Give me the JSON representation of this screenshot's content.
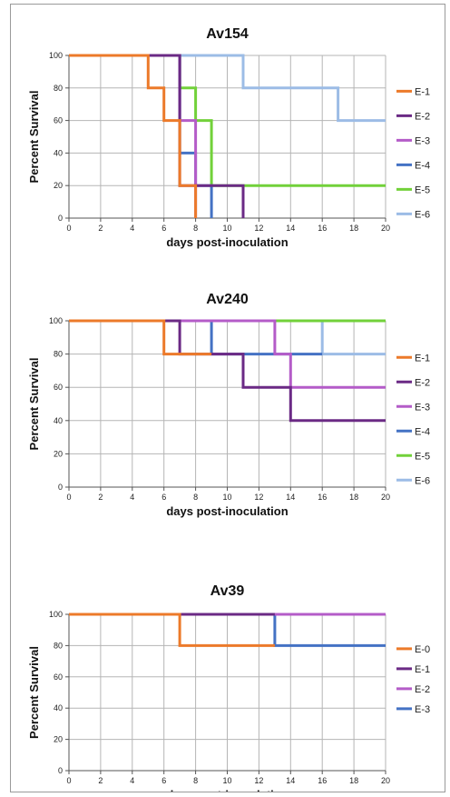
{
  "chart_data": [
    {
      "type": "line",
      "step": true,
      "title": "Av154",
      "xlabel": "days post-inoculation",
      "ylabel": "Percent Survival",
      "xlim": [
        0,
        20
      ],
      "ylim": [
        0,
        100
      ],
      "xticks": [
        0,
        2,
        4,
        6,
        8,
        10,
        12,
        14,
        16,
        18,
        20
      ],
      "yticks": [
        0,
        20,
        40,
        60,
        80,
        100
      ],
      "grid": true,
      "legend_position": "right",
      "series": [
        {
          "name": "E-1",
          "color": "#ec7a2a",
          "points": [
            [
              0,
              100
            ],
            [
              5,
              100
            ],
            [
              5,
              80
            ],
            [
              6,
              80
            ],
            [
              6,
              60
            ],
            [
              7,
              60
            ],
            [
              7,
              20
            ],
            [
              8,
              20
            ],
            [
              8,
              0
            ]
          ]
        },
        {
          "name": "E-2",
          "color": "#6b2a85",
          "points": [
            [
              0,
              100
            ],
            [
              5,
              100
            ],
            [
              5,
              100
            ],
            [
              7,
              100
            ],
            [
              7,
              20
            ],
            [
              11,
              20
            ],
            [
              11,
              0
            ]
          ]
        },
        {
          "name": "E-3",
          "color": "#b45cc8",
          "points": [
            [
              0,
              100
            ],
            [
              7,
              100
            ],
            [
              7,
              60
            ],
            [
              8,
              60
            ],
            [
              8,
              0
            ]
          ]
        },
        {
          "name": "E-4",
          "color": "#4472c4",
          "points": [
            [
              0,
              100
            ],
            [
              7,
              100
            ],
            [
              7,
              40
            ],
            [
              8,
              40
            ],
            [
              8,
              20
            ],
            [
              9,
              20
            ],
            [
              9,
              0
            ]
          ]
        },
        {
          "name": "E-5",
          "color": "#72d13a",
          "points": [
            [
              0,
              100
            ],
            [
              7,
              100
            ],
            [
              7,
              80
            ],
            [
              8,
              80
            ],
            [
              8,
              60
            ],
            [
              9,
              60
            ],
            [
              9,
              20
            ],
            [
              20,
              20
            ]
          ]
        },
        {
          "name": "E-6",
          "color": "#9cbce6",
          "points": [
            [
              0,
              100
            ],
            [
              11,
              100
            ],
            [
              11,
              80
            ],
            [
              17,
              80
            ],
            [
              17,
              60
            ],
            [
              20,
              60
            ]
          ]
        }
      ]
    },
    {
      "type": "line",
      "step": true,
      "title": "Av240",
      "xlabel": "days post-inoculation",
      "ylabel": "Percent Survival",
      "xlim": [
        0,
        20
      ],
      "ylim": [
        0,
        100
      ],
      "xticks": [
        0,
        2,
        4,
        6,
        8,
        10,
        12,
        14,
        16,
        18,
        20
      ],
      "yticks": [
        0,
        20,
        40,
        60,
        80,
        100
      ],
      "grid": true,
      "legend_position": "right",
      "series": [
        {
          "name": "E-1",
          "color": "#ec7a2a",
          "points": [
            [
              0,
              100
            ],
            [
              6,
              100
            ],
            [
              6,
              80
            ],
            [
              9,
              80
            ]
          ]
        },
        {
          "name": "E-2",
          "color": "#6b2a85",
          "points": [
            [
              0,
              100
            ],
            [
              7,
              100
            ],
            [
              7,
              80
            ],
            [
              11,
              80
            ],
            [
              11,
              60
            ],
            [
              14,
              60
            ],
            [
              14,
              40
            ],
            [
              20,
              40
            ]
          ]
        },
        {
          "name": "E-3",
          "color": "#b45cc8",
          "points": [
            [
              0,
              100
            ],
            [
              13,
              100
            ],
            [
              13,
              80
            ],
            [
              14,
              80
            ],
            [
              14,
              60
            ],
            [
              20,
              60
            ]
          ]
        },
        {
          "name": "E-4",
          "color": "#4472c4",
          "points": [
            [
              0,
              100
            ],
            [
              9,
              100
            ],
            [
              9,
              80
            ],
            [
              16,
              80
            ]
          ]
        },
        {
          "name": "E-5",
          "color": "#72d13a",
          "points": [
            [
              0,
              100
            ],
            [
              20,
              100
            ]
          ]
        },
        {
          "name": "E-6",
          "color": "#9cbce6",
          "points": [
            [
              0,
              100
            ],
            [
              16,
              100
            ],
            [
              16,
              80
            ],
            [
              20,
              80
            ]
          ]
        }
      ]
    },
    {
      "type": "line",
      "step": true,
      "title": "Av39",
      "xlabel": "days post-inoculation",
      "ylabel": "Percent Survival",
      "xlim": [
        0,
        20
      ],
      "ylim": [
        0,
        100
      ],
      "xticks": [
        0,
        2,
        4,
        6,
        8,
        10,
        12,
        14,
        16,
        18,
        20
      ],
      "yticks": [
        0,
        20,
        40,
        60,
        80,
        100
      ],
      "grid": true,
      "legend_position": "right",
      "series": [
        {
          "name": "E-0",
          "color": "#ec7a2a",
          "points": [
            [
              0,
              100
            ],
            [
              7,
              100
            ],
            [
              7,
              80
            ],
            [
              13,
              80
            ]
          ]
        },
        {
          "name": "E-1",
          "color": "#6b2a85",
          "points": [
            [
              0,
              100
            ],
            [
              13,
              100
            ]
          ]
        },
        {
          "name": "E-2",
          "color": "#b45cc8",
          "points": [
            [
              0,
              100
            ],
            [
              20,
              100
            ]
          ]
        },
        {
          "name": "E-3",
          "color": "#4472c4",
          "points": [
            [
              0,
              100
            ],
            [
              13,
              100
            ],
            [
              13,
              80
            ],
            [
              20,
              80
            ]
          ]
        }
      ]
    }
  ]
}
